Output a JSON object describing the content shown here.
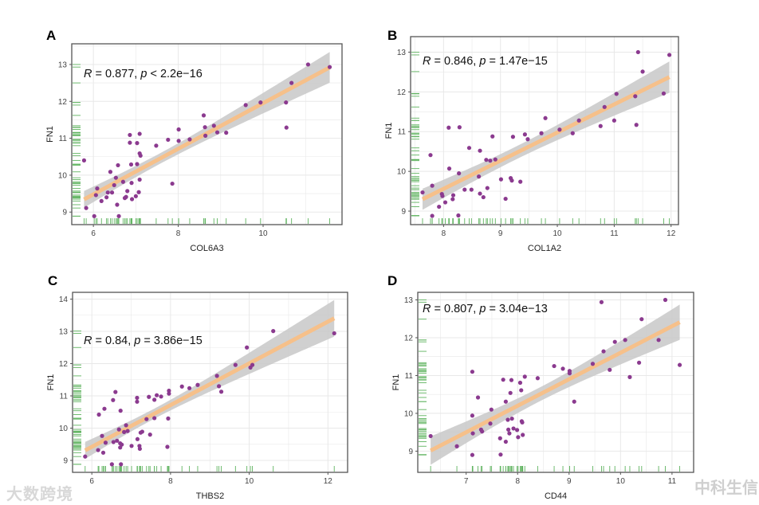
{
  "chart_data": [
    {
      "panel": "A",
      "type": "scatter",
      "xlabel": "COL6A3",
      "ylabel": "FN1",
      "xlim": [
        5.49,
        11.86
      ],
      "ylim": [
        8.66,
        13.56
      ],
      "xticks": [
        6,
        8,
        10
      ],
      "yticks": [
        9,
        10,
        11,
        12,
        13
      ],
      "annotation": {
        "r_label": "R",
        "r_text": " = 0.877, ",
        "p_label": "p",
        "p_text": " < 2.2e−16"
      },
      "points": [
        [
          5.78,
          10.4
        ],
        [
          5.83,
          9.11
        ],
        [
          6.02,
          8.89
        ],
        [
          6.06,
          9.46
        ],
        [
          6.09,
          9.64
        ],
        [
          6.19,
          9.3
        ],
        [
          6.31,
          9.4
        ],
        [
          6.34,
          9.53
        ],
        [
          6.4,
          10.09
        ],
        [
          6.44,
          9.53
        ],
        [
          6.49,
          9.73
        ],
        [
          6.53,
          9.93
        ],
        [
          6.56,
          9.2
        ],
        [
          6.58,
          10.27
        ],
        [
          6.6,
          8.89
        ],
        [
          6.7,
          9.82
        ],
        [
          6.74,
          9.38
        ],
        [
          6.77,
          9.41
        ],
        [
          6.8,
          9.57
        ],
        [
          6.86,
          11.09
        ],
        [
          6.86,
          10.88
        ],
        [
          6.89,
          10.29
        ],
        [
          6.9,
          9.79
        ],
        [
          6.91,
          9.35
        ],
        [
          7.0,
          9.43
        ],
        [
          7.03,
          10.87
        ],
        [
          7.03,
          10.3
        ],
        [
          7.07,
          9.54
        ],
        [
          7.09,
          11.12
        ],
        [
          7.09,
          10.59
        ],
        [
          7.11,
          10.53
        ],
        [
          7.09,
          9.88
        ],
        [
          7.48,
          10.8
        ],
        [
          7.76,
          10.96
        ],
        [
          7.86,
          9.77
        ],
        [
          8.01,
          11.24
        ],
        [
          8.01,
          10.93
        ],
        [
          8.27,
          10.97
        ],
        [
          8.6,
          11.62
        ],
        [
          8.63,
          11.3
        ],
        [
          8.64,
          11.07
        ],
        [
          8.84,
          11.34
        ],
        [
          8.92,
          11.16
        ],
        [
          9.13,
          11.15
        ],
        [
          9.59,
          11.9
        ],
        [
          9.94,
          11.97
        ],
        [
          10.54,
          11.97
        ],
        [
          10.55,
          11.29
        ],
        [
          10.67,
          12.5
        ],
        [
          11.06,
          13.0
        ],
        [
          11.57,
          12.93
        ]
      ]
    },
    {
      "panel": "B",
      "type": "scatter",
      "xlabel": "COL1A2",
      "ylabel": "FN1",
      "xlim": [
        7.42,
        12.13
      ],
      "ylim": [
        8.66,
        13.39
      ],
      "xticks": [
        8,
        9,
        10,
        11,
        12
      ],
      "yticks": [
        9,
        10,
        11,
        12,
        13
      ],
      "annotation": {
        "r_label": "R",
        "r_text": " = 0.846, ",
        "p_label": "p",
        "p_text": " = 1.47e−15"
      },
      "points": [
        [
          7.63,
          9.47
        ],
        [
          7.77,
          10.41
        ],
        [
          7.8,
          9.64
        ],
        [
          7.8,
          8.88
        ],
        [
          7.92,
          9.11
        ],
        [
          7.97,
          9.43
        ],
        [
          7.98,
          9.38
        ],
        [
          8.03,
          9.22
        ],
        [
          8.09,
          11.1
        ],
        [
          8.1,
          10.07
        ],
        [
          8.16,
          9.3
        ],
        [
          8.17,
          9.4
        ],
        [
          8.27,
          9.95
        ],
        [
          8.26,
          8.89
        ],
        [
          8.28,
          11.11
        ],
        [
          8.37,
          9.54
        ],
        [
          8.45,
          10.59
        ],
        [
          8.49,
          9.54
        ],
        [
          8.62,
          9.87
        ],
        [
          8.64,
          9.44
        ],
        [
          8.64,
          10.52
        ],
        [
          8.7,
          9.35
        ],
        [
          8.75,
          10.29
        ],
        [
          8.77,
          9.58
        ],
        [
          8.82,
          10.27
        ],
        [
          8.86,
          10.88
        ],
        [
          8.91,
          10.3
        ],
        [
          9.01,
          9.8
        ],
        [
          9.09,
          9.31
        ],
        [
          9.18,
          9.83
        ],
        [
          9.2,
          9.77
        ],
        [
          9.22,
          10.87
        ],
        [
          9.35,
          9.74
        ],
        [
          9.43,
          10.93
        ],
        [
          9.48,
          10.81
        ],
        [
          9.72,
          10.96
        ],
        [
          9.79,
          11.34
        ],
        [
          10.04,
          11.05
        ],
        [
          10.27,
          10.96
        ],
        [
          10.38,
          11.28
        ],
        [
          10.76,
          11.14
        ],
        [
          10.83,
          11.62
        ],
        [
          11.0,
          11.28
        ],
        [
          11.04,
          11.95
        ],
        [
          11.37,
          11.89
        ],
        [
          11.39,
          11.17
        ],
        [
          11.42,
          13.0
        ],
        [
          11.5,
          12.51
        ],
        [
          11.87,
          11.96
        ],
        [
          11.97,
          12.93
        ]
      ]
    },
    {
      "panel": "C",
      "type": "scatter",
      "xlabel": "THBS2",
      "ylabel": "FN1",
      "xlim": [
        5.51,
        12.5
      ],
      "ylim": [
        8.63,
        14.21
      ],
      "xticks": [
        6,
        8,
        10,
        12
      ],
      "yticks": [
        9,
        10,
        11,
        12,
        13,
        14
      ],
      "annotation": {
        "r_label": "R",
        "r_text": " = 0.84, ",
        "p_label": "p",
        "p_text": " = 3.86e−15"
      },
      "points": [
        [
          5.83,
          9.12
        ],
        [
          6.16,
          9.32
        ],
        [
          6.18,
          10.42
        ],
        [
          6.26,
          9.76
        ],
        [
          6.29,
          9.24
        ],
        [
          6.32,
          10.6
        ],
        [
          6.35,
          9.55
        ],
        [
          6.51,
          8.88
        ],
        [
          6.54,
          10.87
        ],
        [
          6.55,
          9.57
        ],
        [
          6.6,
          11.12
        ],
        [
          6.64,
          9.61
        ],
        [
          6.69,
          9.96
        ],
        [
          6.72,
          9.53
        ],
        [
          6.72,
          9.4
        ],
        [
          6.73,
          10.54
        ],
        [
          6.74,
          8.88
        ],
        [
          6.76,
          9.49
        ],
        [
          6.82,
          9.88
        ],
        [
          6.87,
          10.09
        ],
        [
          6.91,
          9.91
        ],
        [
          7.01,
          9.45
        ],
        [
          7.15,
          10.94
        ],
        [
          7.15,
          10.82
        ],
        [
          7.16,
          9.66
        ],
        [
          7.21,
          9.45
        ],
        [
          7.22,
          9.36
        ],
        [
          7.24,
          9.86
        ],
        [
          7.28,
          9.89
        ],
        [
          7.39,
          10.28
        ],
        [
          7.45,
          10.97
        ],
        [
          7.48,
          9.8
        ],
        [
          7.59,
          10.88
        ],
        [
          7.59,
          10.31
        ],
        [
          7.65,
          11.02
        ],
        [
          7.76,
          10.98
        ],
        [
          7.92,
          9.42
        ],
        [
          7.94,
          10.3
        ],
        [
          7.96,
          11.07
        ],
        [
          7.96,
          11.16
        ],
        [
          8.29,
          11.29
        ],
        [
          8.48,
          11.24
        ],
        [
          8.69,
          11.34
        ],
        [
          9.18,
          11.62
        ],
        [
          9.23,
          11.3
        ],
        [
          9.29,
          11.13
        ],
        [
          9.65,
          11.96
        ],
        [
          9.94,
          12.5
        ],
        [
          10.03,
          11.88
        ],
        [
          10.08,
          11.96
        ],
        [
          10.61,
          13.01
        ],
        [
          12.16,
          12.94
        ]
      ]
    },
    {
      "panel": "D",
      "type": "scatter",
      "xlabel": "CD44",
      "ylabel": "FN1",
      "xlim": [
        6.06,
        11.42
      ],
      "ylim": [
        8.44,
        13.2
      ],
      "xticks": [
        7,
        8,
        9,
        10,
        11
      ],
      "yticks": [
        9,
        10,
        11,
        12,
        13
      ],
      "annotation": {
        "r_label": "R",
        "r_text": " = 0.807, ",
        "p_label": "p",
        "p_text": " = 3.04e−13"
      },
      "points": [
        [
          6.31,
          9.4
        ],
        [
          6.82,
          9.13
        ],
        [
          7.12,
          11.1
        ],
        [
          7.12,
          9.94
        ],
        [
          7.12,
          8.9
        ],
        [
          7.13,
          9.47
        ],
        [
          7.23,
          10.42
        ],
        [
          7.29,
          9.57
        ],
        [
          7.31,
          9.52
        ],
        [
          7.47,
          9.73
        ],
        [
          7.49,
          10.1
        ],
        [
          7.66,
          9.34
        ],
        [
          7.67,
          8.91
        ],
        [
          7.72,
          10.89
        ],
        [
          7.77,
          10.31
        ],
        [
          7.77,
          9.25
        ],
        [
          7.81,
          9.83
        ],
        [
          7.82,
          9.57
        ],
        [
          7.84,
          9.47
        ],
        [
          7.88,
          10.88
        ],
        [
          7.86,
          10.54
        ],
        [
          7.89,
          9.86
        ],
        [
          7.92,
          9.6
        ],
        [
          7.99,
          9.56
        ],
        [
          8.01,
          9.37
        ],
        [
          8.05,
          10.81
        ],
        [
          8.07,
          10.61
        ],
        [
          8.08,
          9.79
        ],
        [
          8.09,
          9.76
        ],
        [
          8.1,
          9.43
        ],
        [
          8.14,
          10.97
        ],
        [
          8.39,
          10.93
        ],
        [
          8.71,
          11.25
        ],
        [
          8.88,
          11.18
        ],
        [
          9.01,
          11.12
        ],
        [
          9.01,
          11.06
        ],
        [
          9.1,
          10.31
        ],
        [
          9.46,
          11.31
        ],
        [
          9.63,
          12.94
        ],
        [
          9.67,
          11.64
        ],
        [
          9.79,
          11.15
        ],
        [
          9.89,
          11.89
        ],
        [
          10.09,
          11.94
        ],
        [
          10.18,
          10.96
        ],
        [
          10.36,
          11.34
        ],
        [
          10.41,
          12.49
        ],
        [
          10.74,
          11.94
        ],
        [
          10.87,
          13.0
        ],
        [
          11.15,
          11.28
        ]
      ]
    }
  ],
  "colors": {
    "point": "#8b3a8f",
    "fit": "#f6c08a",
    "band": "#c8c8c8",
    "rug": "#5fb35f",
    "grid": "#e8e8e8"
  },
  "watermarks": {
    "left": "大数跨境",
    "right": "中科生信"
  }
}
